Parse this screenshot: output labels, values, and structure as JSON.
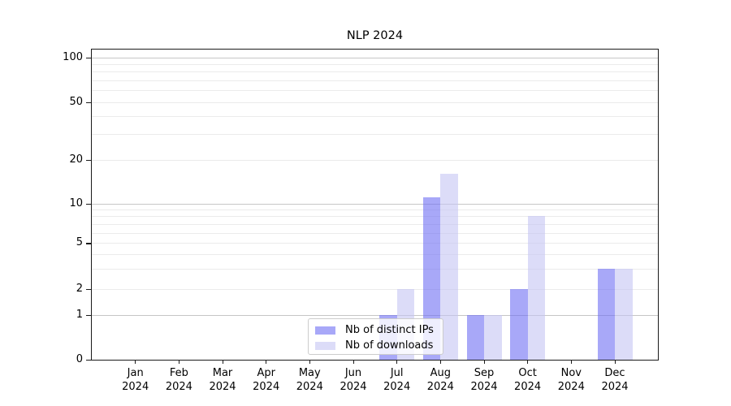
{
  "chart_data": {
    "type": "bar",
    "title": "NLP 2024",
    "categories": [
      "Jan",
      "Feb",
      "Mar",
      "Apr",
      "May",
      "Jun",
      "Jul",
      "Aug",
      "Sep",
      "Oct",
      "Nov",
      "Dec"
    ],
    "year_label": "2024",
    "series": [
      {
        "name": "Nb of distinct IPs",
        "color": "rgba(110,110,243,0.6)",
        "values": [
          0,
          0,
          0,
          0,
          0,
          0,
          1,
          11,
          1,
          2,
          0,
          3
        ]
      },
      {
        "name": "Nb of downloads",
        "color": "rgba(197,197,243,0.6)",
        "values": [
          0,
          0,
          0,
          0,
          0,
          0,
          2,
          16,
          1,
          8,
          0,
          3
        ]
      }
    ],
    "xlabel": "",
    "ylabel": "",
    "y_ticks": [
      0,
      1,
      2,
      5,
      10,
      20,
      50,
      100
    ],
    "y_scale": "symlog",
    "ylim": [
      0,
      130
    ],
    "grid": "on",
    "legend_position": "lower-center-inside"
  },
  "colors": {
    "major_grid": "#c6c6c6",
    "minor_grid": "#ebebeb",
    "axis": "#1a1a1a",
    "legend_border": "#cccccc"
  }
}
